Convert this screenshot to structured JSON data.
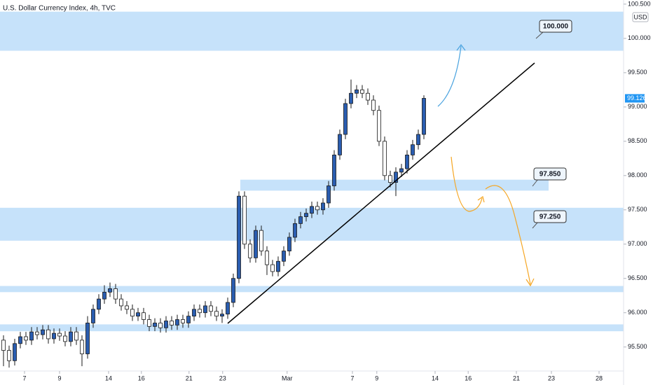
{
  "chart_data": {
    "type": "candlestick",
    "title": "U.S. Dollar Currency Index, 4h, TVC",
    "currency": "USD",
    "up_color": "#2a5db0",
    "down_color": "#ffffff",
    "zone_color": "#c6e2fa",
    "ylim": [
      95.15,
      100.56
    ],
    "xlim": [
      -0.625,
      110.625
    ],
    "yticks": [
      {
        "value": 95.5,
        "label": "95.500"
      },
      {
        "value": 96,
        "label": "96.000"
      },
      {
        "value": 96.5,
        "label": "96.500"
      },
      {
        "value": 97,
        "label": "97.000"
      },
      {
        "value": 97.5,
        "label": "97.500"
      },
      {
        "value": 98,
        "label": "98.000"
      },
      {
        "value": 98.5,
        "label": "98.500"
      },
      {
        "value": 99,
        "label": "99.000"
      },
      {
        "value": 99.5,
        "label": "99.500"
      },
      {
        "value": 100,
        "label": "100.000"
      },
      {
        "value": 100.5,
        "label": "100.500"
      }
    ],
    "xticks": [
      {
        "value": 3.75,
        "label": "7"
      },
      {
        "value": 10,
        "label": "9"
      },
      {
        "value": 18.75,
        "label": "14"
      },
      {
        "value": 24.6,
        "label": "16"
      },
      {
        "value": 33.1,
        "label": "21"
      },
      {
        "value": 39.1,
        "label": "23"
      },
      {
        "value": 50.6,
        "label": "Mar"
      },
      {
        "value": 62.25,
        "label": "7"
      },
      {
        "value": 66.6,
        "label": "9"
      },
      {
        "value": 77,
        "label": "14"
      },
      {
        "value": 82.9,
        "label": "16"
      },
      {
        "value": 91.5,
        "label": "21"
      },
      {
        "value": 97.75,
        "label": "23"
      },
      {
        "value": 106.25,
        "label": "28"
      }
    ],
    "zones": [
      {
        "x": [
          -0.625,
          110.625
        ],
        "y": [
          99.82,
          100.39
        ]
      },
      {
        "x": [
          42.25,
          97.25
        ],
        "y": [
          97.78,
          97.94
        ]
      },
      {
        "x": [
          -0.625,
          110.625
        ],
        "y": [
          97.05,
          97.53
        ]
      },
      {
        "x": [
          -0.625,
          110.625
        ],
        "y": [
          96.3,
          96.39
        ]
      },
      {
        "x": [
          -0.625,
          110.625
        ],
        "y": [
          95.73,
          95.83
        ]
      }
    ],
    "annotations": [
      "100.000",
      "97.850",
      "97.250"
    ],
    "candles": [
      [
        95.6,
        95.67,
        95.22,
        95.45
      ],
      [
        95.45,
        95.52,
        95.2,
        95.3
      ],
      [
        95.3,
        95.62,
        95.23,
        95.55
      ],
      [
        95.55,
        95.72,
        95.48,
        95.65
      ],
      [
        95.65,
        95.72,
        95.53,
        95.6
      ],
      [
        95.6,
        95.79,
        95.53,
        95.72
      ],
      [
        95.72,
        95.79,
        95.61,
        95.68
      ],
      [
        95.68,
        95.82,
        95.61,
        95.75
      ],
      [
        95.75,
        95.82,
        95.55,
        95.62
      ],
      [
        95.62,
        95.77,
        95.55,
        95.7
      ],
      [
        95.7,
        95.77,
        95.59,
        95.66
      ],
      [
        95.66,
        95.73,
        95.51,
        95.58
      ],
      [
        95.58,
        95.79,
        95.51,
        95.72
      ],
      [
        95.72,
        95.79,
        95.53,
        95.6
      ],
      [
        95.6,
        95.67,
        95.22,
        95.4
      ],
      [
        95.4,
        95.95,
        95.33,
        95.85
      ],
      [
        95.85,
        96.12,
        95.78,
        96.05
      ],
      [
        96.05,
        96.27,
        95.98,
        96.2
      ],
      [
        96.2,
        96.4,
        96.13,
        96.3
      ],
      [
        96.3,
        96.44,
        96.23,
        96.35
      ],
      [
        96.35,
        96.42,
        96.13,
        96.2
      ],
      [
        96.2,
        96.27,
        96.03,
        96.1
      ],
      [
        96.1,
        96.17,
        95.98,
        96.05
      ],
      [
        96.05,
        96.12,
        95.88,
        95.95
      ],
      [
        95.95,
        96.07,
        95.88,
        96.0
      ],
      [
        96.0,
        96.07,
        95.83,
        95.9
      ],
      [
        95.9,
        95.97,
        95.73,
        95.8
      ],
      [
        95.8,
        95.92,
        95.73,
        95.85
      ],
      [
        95.85,
        95.92,
        95.71,
        95.78
      ],
      [
        95.78,
        95.95,
        95.71,
        95.88
      ],
      [
        95.88,
        95.95,
        95.75,
        95.82
      ],
      [
        95.82,
        95.97,
        95.75,
        95.9
      ],
      [
        95.9,
        95.97,
        95.78,
        95.85
      ],
      [
        95.85,
        96.02,
        95.78,
        95.95
      ],
      [
        95.95,
        96.12,
        95.88,
        96.05
      ],
      [
        96.05,
        96.12,
        95.93,
        96.0
      ],
      [
        96.0,
        96.17,
        95.93,
        96.1
      ],
      [
        96.1,
        96.17,
        95.95,
        96.02
      ],
      [
        96.02,
        96.09,
        95.88,
        95.95
      ],
      [
        95.95,
        96.05,
        95.85,
        95.98
      ],
      [
        95.98,
        96.22,
        95.91,
        96.15
      ],
      [
        96.15,
        96.57,
        96.08,
        96.5
      ],
      [
        96.5,
        97.77,
        96.43,
        97.7
      ],
      [
        97.7,
        97.77,
        96.93,
        97.0
      ],
      [
        97.0,
        97.07,
        96.73,
        96.8
      ],
      [
        96.8,
        97.27,
        96.73,
        97.2
      ],
      [
        97.2,
        97.27,
        96.83,
        96.9
      ],
      [
        96.9,
        96.97,
        96.55,
        96.7
      ],
      [
        96.7,
        96.77,
        96.53,
        96.6
      ],
      [
        96.6,
        96.82,
        96.53,
        96.75
      ],
      [
        96.75,
        96.97,
        96.68,
        96.9
      ],
      [
        96.9,
        97.17,
        96.83,
        97.1
      ],
      [
        97.1,
        97.37,
        97.03,
        97.3
      ],
      [
        97.3,
        97.47,
        97.23,
        97.4
      ],
      [
        97.4,
        97.52,
        97.33,
        97.45
      ],
      [
        97.45,
        97.62,
        97.38,
        97.55
      ],
      [
        97.55,
        97.62,
        97.43,
        97.5
      ],
      [
        97.5,
        97.67,
        97.43,
        97.6
      ],
      [
        97.6,
        97.92,
        97.53,
        97.85
      ],
      [
        97.85,
        98.37,
        97.78,
        98.3
      ],
      [
        98.3,
        98.67,
        98.23,
        98.6
      ],
      [
        98.6,
        99.12,
        98.53,
        99.05
      ],
      [
        99.05,
        99.4,
        98.98,
        99.2
      ],
      [
        99.2,
        99.32,
        99.13,
        99.25
      ],
      [
        99.25,
        99.32,
        99.13,
        99.2
      ],
      [
        99.2,
        99.27,
        99.03,
        99.1
      ],
      [
        99.1,
        99.17,
        98.88,
        98.95
      ],
      [
        98.95,
        99.02,
        98.43,
        98.5
      ],
      [
        98.5,
        98.57,
        97.93,
        98.0
      ],
      [
        98.0,
        98.07,
        97.83,
        97.9
      ],
      [
        97.9,
        98.12,
        97.7,
        98.05
      ],
      [
        98.05,
        98.17,
        97.98,
        98.1
      ],
      [
        98.1,
        98.37,
        98.03,
        98.3
      ],
      [
        98.3,
        98.52,
        98.23,
        98.45
      ],
      [
        98.45,
        98.67,
        98.38,
        98.6
      ],
      [
        98.6,
        99.17,
        98.53,
        99.126
      ]
    ]
  }
}
